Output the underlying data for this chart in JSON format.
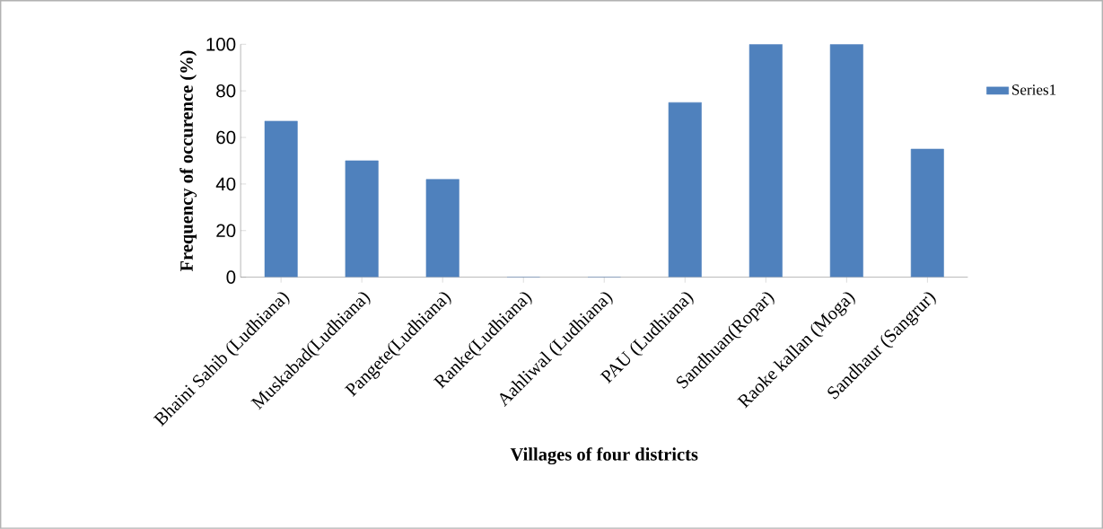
{
  "chart_data": {
    "type": "bar",
    "categories": [
      "Bhaini Sahib (Ludhiana)",
      "Muskabad(Ludhiana)",
      "Pangete(Ludhiana)",
      "Ranke(Ludhiana)",
      "Aahliwal (Ludhiana)",
      "PAU (Ludhiana)",
      "Sandhuan(Ropar)",
      "Raoke kallan (Moga)",
      "Sandhaur (Sangrur)"
    ],
    "series": [
      {
        "name": "Series1",
        "color": "#4f81bd",
        "values": [
          67,
          50,
          42,
          0,
          0,
          75,
          100,
          100,
          55
        ]
      }
    ],
    "xlabel": "Villages of four districts",
    "ylabel": "Frequency of occurence (%)",
    "ylim": [
      0,
      100
    ],
    "yticks": [
      0,
      20,
      40,
      60,
      80,
      100
    ],
    "grid": false,
    "legend": "right"
  }
}
